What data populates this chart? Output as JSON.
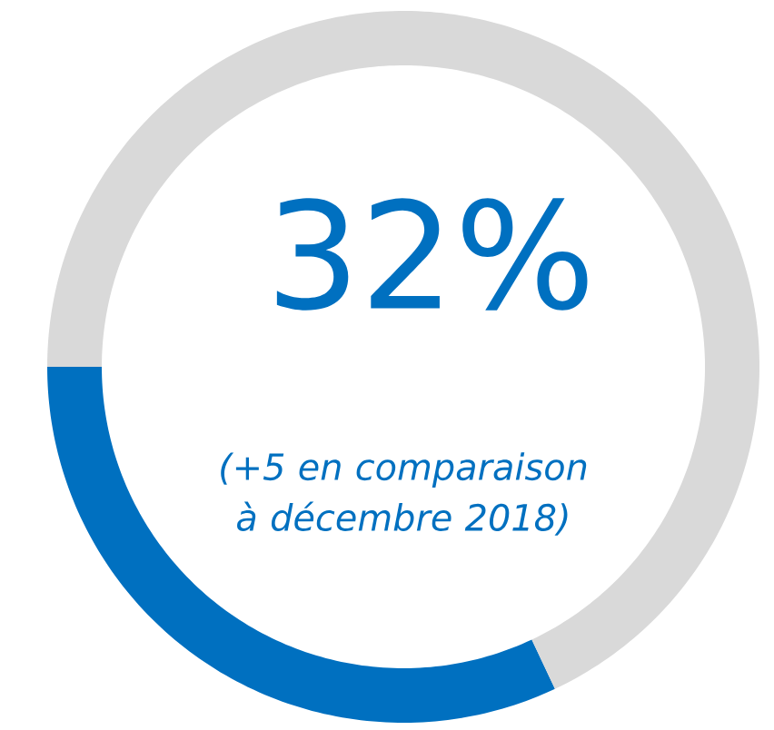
{
  "chart_data": {
    "type": "donut",
    "categories": [
      null,
      null
    ],
    "values": [
      32,
      68
    ],
    "colors": [
      "#0070c0",
      "#d9d9d9"
    ],
    "annotations": [
      "32%",
      "(+5 en comparaison à décembre 2018)"
    ]
  }
}
